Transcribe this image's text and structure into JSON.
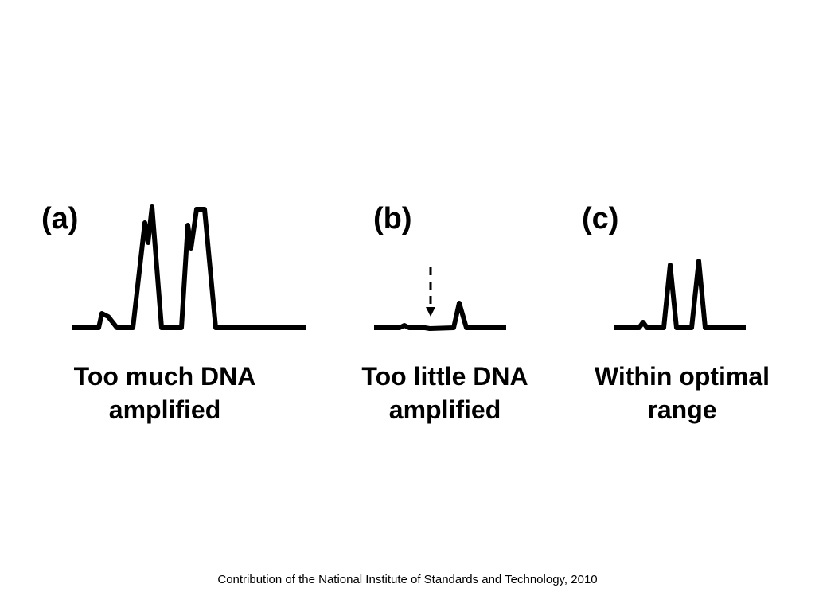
{
  "panels": [
    {
      "label": "(a)",
      "caption_line1": "Too much DNA",
      "caption_line2": "amplified"
    },
    {
      "label": "(b)",
      "caption_line1": "Too little DNA",
      "caption_line2": "amplified"
    },
    {
      "label": "(c)",
      "caption_line1": "Within optimal",
      "caption_line2": "range"
    }
  ],
  "footer": "Contribution of the National Institute of Standards and Technology, 2010",
  "colors": {
    "trace": "#000000",
    "background": "#ffffff"
  }
}
